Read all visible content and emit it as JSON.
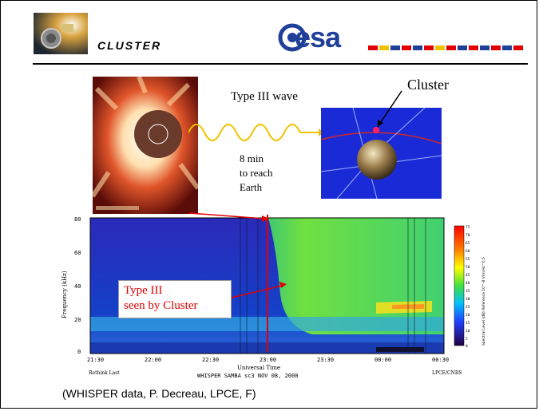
{
  "header": {
    "title": "CLUSTER",
    "agency_logo_text": "esa"
  },
  "diagram": {
    "wave_label": "Type III wave",
    "spacecraft_label": "Cluster",
    "travel_time_lines": [
      "8 min",
      "to reach",
      "Earth"
    ]
  },
  "spectrogram": {
    "y_axis_label": "Frequency (kHz)",
    "y_ticks": [
      "80",
      "60",
      "40",
      "20",
      "0"
    ],
    "x_ticks": [
      "21:30",
      "22:00",
      "22:30",
      "23:00",
      "23:30",
      "00:00",
      "00:30"
    ],
    "x_axis_label": "Universal Time",
    "footer_left": "Rethink Last",
    "footer_center": "WHISPER SAMBA  sc3     NOV 08, 2000",
    "footer_right": "LPCE/CNRS",
    "colorbar_ticks": [
      "75",
      "70",
      "65",
      "60",
      "55",
      "50",
      "45",
      "40",
      "35",
      "30",
      "25",
      "20",
      "15",
      "10",
      "5",
      "0"
    ],
    "colorbar_label": "Spectral Level (dB)  Reference 10^-8 V/m/Hz^0.5"
  },
  "callout": {
    "lines": [
      "Type III",
      "seen by Cluster"
    ]
  },
  "caption": "(WHISPER data, P. Decreau, LPCE, F)",
  "colors": {
    "accent_red": "#e00000",
    "esa_blue": "#1f3f99",
    "wave_yellow": "#f2c200"
  }
}
